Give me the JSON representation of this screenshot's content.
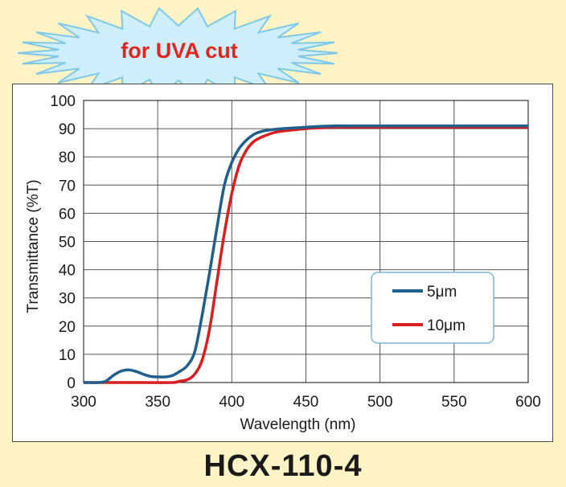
{
  "badge": {
    "text": "for UVA cut",
    "color": "#e0261c",
    "burst_color": "#cfeefb",
    "burst_stroke": "#7fc8e8"
  },
  "model": {
    "name": "HCX-110-4"
  },
  "colors": {
    "background": "#fdf3c4",
    "grid": "#555555"
  },
  "chart_data": {
    "type": "line",
    "xlabel": "Wavelength (nm)",
    "ylabel": "Transmittance (%T)",
    "xlim": [
      300,
      600
    ],
    "ylim": [
      0,
      100
    ],
    "xticks": [
      300,
      350,
      400,
      450,
      500,
      550,
      600
    ],
    "yticks": [
      0,
      10,
      20,
      30,
      40,
      50,
      60,
      70,
      80,
      90,
      100
    ],
    "grid": true,
    "legend_position": "center-right",
    "series": [
      {
        "name": "5μm",
        "color": "#1f5f8b",
        "x": [
          300,
          310,
          315,
          320,
          325,
          330,
          335,
          340,
          345,
          350,
          355,
          360,
          365,
          370,
          375,
          380,
          385,
          390,
          395,
          400,
          405,
          410,
          415,
          420,
          425,
          430,
          440,
          450,
          460,
          470,
          480,
          500,
          550,
          600
        ],
        "y": [
          0,
          0,
          0.5,
          2.5,
          4,
          4.5,
          4,
          3,
          2.2,
          2,
          2,
          2.5,
          4,
          6,
          11,
          24,
          39,
          55,
          70,
          78,
          83,
          86,
          88,
          89,
          89.5,
          89.8,
          90.2,
          90.5,
          90.8,
          91,
          91,
          91,
          91,
          91
        ]
      },
      {
        "name": "10μm",
        "color": "#d81e1e",
        "x": [
          300,
          320,
          340,
          360,
          365,
          370,
          375,
          380,
          385,
          390,
          395,
          400,
          405,
          410,
          415,
          420,
          425,
          430,
          440,
          450,
          460,
          470,
          480,
          500,
          550,
          600
        ],
        "y": [
          0,
          0,
          0,
          0,
          0.5,
          1,
          3,
          8,
          19,
          36,
          53,
          67,
          77,
          82.5,
          85.5,
          87,
          88,
          88.8,
          89.5,
          90,
          90.3,
          90.5,
          90.5,
          90.5,
          90.5,
          90.5
        ]
      }
    ]
  }
}
